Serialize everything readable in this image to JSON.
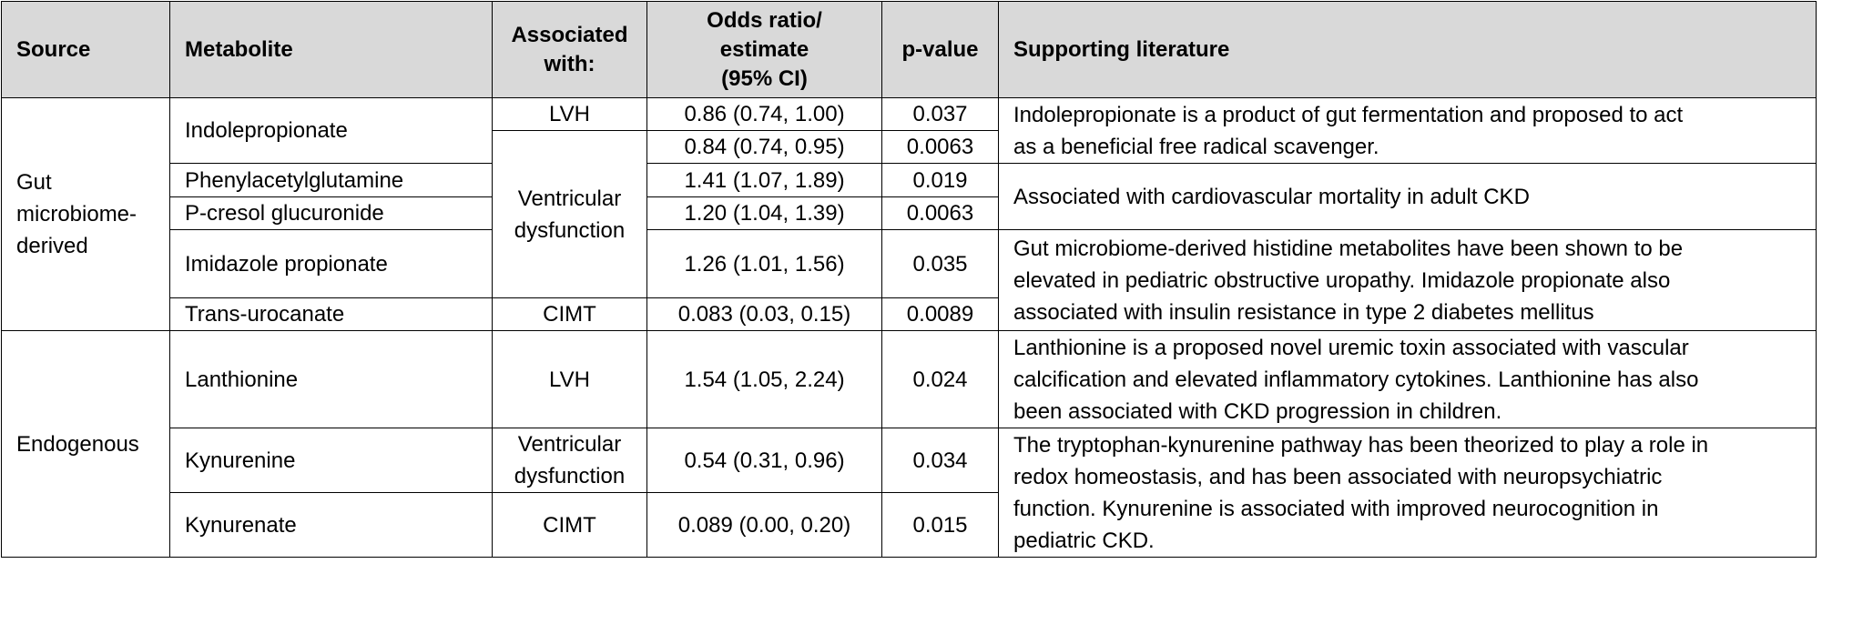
{
  "headers": {
    "source": "Source",
    "metabolite": "Metabolite",
    "associated_line1": "Associated",
    "associated_line2": "with:",
    "odds_line1": "Odds ratio/",
    "odds_line2": "estimate",
    "odds_line3": "(95% CI)",
    "pvalue": "p-value",
    "literature": "Supporting literature"
  },
  "groups": {
    "gut_line1": "Gut",
    "gut_line2": "microbiome-",
    "gut_line3": "derived",
    "endogenous": "Endogenous"
  },
  "associations": {
    "lvh": "LVH",
    "vd_line1": "Ventricular",
    "vd_line2": "dysfunction",
    "cimt": "CIMT"
  },
  "rows": [
    {
      "metabolite": "Indolepropionate",
      "odds": "0.86 (0.74, 1.00)",
      "p": "0.037"
    },
    {
      "metabolite": "",
      "odds": "0.84 (0.74, 0.95)",
      "p": "0.0063"
    },
    {
      "metabolite": "Phenylacetylglutamine",
      "odds": "1.41 (1.07, 1.89)",
      "p": "0.019"
    },
    {
      "metabolite": "P-cresol glucuronide",
      "odds": "1.20 (1.04, 1.39)",
      "p": "0.0063"
    },
    {
      "metabolite": "Imidazole propionate",
      "odds": "1.26 (1.01, 1.56)",
      "p": "0.035"
    },
    {
      "metabolite": "Trans-urocanate",
      "odds": "0.083 (0.03, 0.15)",
      "p": "0.0089"
    },
    {
      "metabolite": "Lanthionine",
      "odds": "1.54 (1.05, 2.24)",
      "p": "0.024"
    },
    {
      "metabolite": "Kynurenine",
      "odds": "0.54 (0.31, 0.96)",
      "p": "0.034"
    },
    {
      "metabolite": "Kynurenate",
      "odds": "0.089 (0.00, 0.20)",
      "p": "0.015"
    }
  ],
  "literature": {
    "indolepropionate_line1": "Indolepropionate is a product of gut fermentation and proposed to act",
    "indolepropionate_line2": "as a beneficial free radical scavenger.",
    "cardio": "Associated with cardiovascular mortality in adult CKD",
    "histidine_line1": "Gut microbiome-derived histidine metabolites have been shown to be",
    "histidine_line2": "elevated in pediatric obstructive uropathy. Imidazole propionate also",
    "histidine_line3": "associated with insulin resistance in type 2 diabetes mellitus",
    "lanthionine_line1": "Lanthionine is a proposed novel uremic toxin associated with vascular",
    "lanthionine_line2": "calcification and elevated inflammatory cytokines. Lanthionine has also",
    "lanthionine_line3": "been associated with CKD progression in children.",
    "kynurenine_line1": "The tryptophan-kynurenine pathway has been theorized to play a role in",
    "kynurenine_line2": "redox homeostasis, and has been associated with neuropsychiatric",
    "kynurenine_line3": "function. Kynurenine is associated with improved neurocognition in",
    "kynurenine_line4": "pediatric CKD."
  }
}
